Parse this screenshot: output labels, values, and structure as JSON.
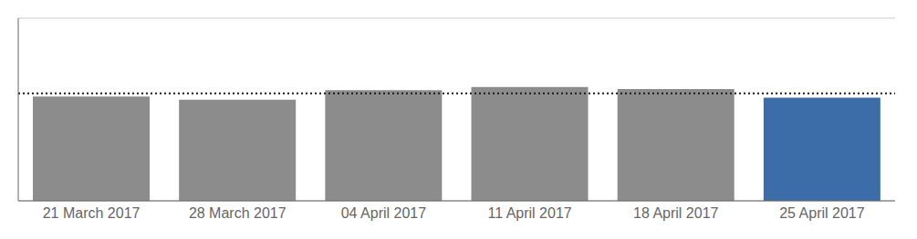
{
  "chart_data": {
    "type": "bar",
    "categories": [
      "21 March 2017",
      "28 March 2017",
      "04 April 2017",
      "11 April 2017",
      "18 April 2017",
      "25 April 2017"
    ],
    "values": [
      97,
      94,
      103,
      106,
      104,
      96
    ],
    "colors": [
      "#8c8c8c",
      "#8c8c8c",
      "#8c8c8c",
      "#8c8c8c",
      "#8c8c8c",
      "#3d6da8"
    ],
    "ylim": [
      0,
      170
    ],
    "yticks": [
      0,
      57,
      114
    ],
    "grid": true,
    "tick_labels": "x",
    "reference_line": {
      "y": 100,
      "color": "#1a1a1a",
      "line_style": "dotted"
    }
  }
}
